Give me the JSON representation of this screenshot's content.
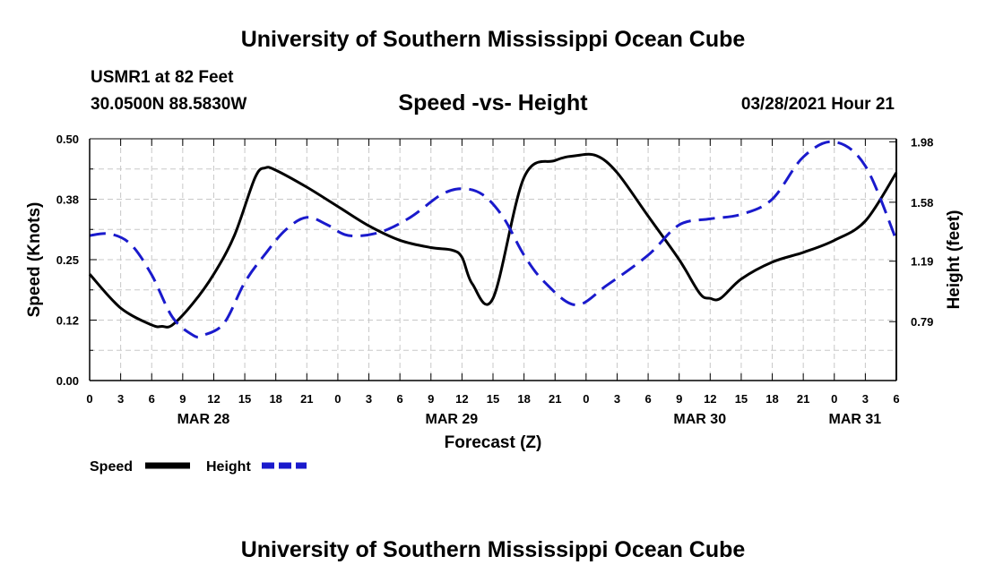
{
  "header": {
    "title_top": "University of Southern Mississippi Ocean Cube",
    "station": "USMR1 at 82 Feet",
    "coords": "30.0500N  88.5830W",
    "chart_title": "Speed -vs- Height",
    "datetime": "03/28/2021 Hour 21"
  },
  "footer": {
    "title_bottom": "University of Southern Mississippi Ocean Cube"
  },
  "colors": {
    "speed": "#000000",
    "height": "#1a1acc",
    "grid": "#c8c8c8"
  },
  "chart_data": {
    "type": "line",
    "title": "Speed -vs- Height",
    "xlabel": "Forecast (Z)",
    "ylabel_left": "Speed (Knots)",
    "ylabel_right": "Height (feet)",
    "x_range_hours": [
      0,
      78
    ],
    "x_ticks": [
      {
        "h": 0,
        "label": "0"
      },
      {
        "h": 3,
        "label": "3"
      },
      {
        "h": 6,
        "label": "6"
      },
      {
        "h": 9,
        "label": "9"
      },
      {
        "h": 12,
        "label": "12"
      },
      {
        "h": 15,
        "label": "15"
      },
      {
        "h": 18,
        "label": "18"
      },
      {
        "h": 21,
        "label": "21"
      },
      {
        "h": 24,
        "label": "0"
      },
      {
        "h": 27,
        "label": "3"
      },
      {
        "h": 30,
        "label": "6"
      },
      {
        "h": 33,
        "label": "9"
      },
      {
        "h": 36,
        "label": "12"
      },
      {
        "h": 39,
        "label": "15"
      },
      {
        "h": 42,
        "label": "18"
      },
      {
        "h": 45,
        "label": "21"
      },
      {
        "h": 48,
        "label": "0"
      },
      {
        "h": 51,
        "label": "3"
      },
      {
        "h": 54,
        "label": "6"
      },
      {
        "h": 57,
        "label": "9"
      },
      {
        "h": 60,
        "label": "12"
      },
      {
        "h": 63,
        "label": "15"
      },
      {
        "h": 66,
        "label": "18"
      },
      {
        "h": 69,
        "label": "21"
      },
      {
        "h": 72,
        "label": "0"
      },
      {
        "h": 75,
        "label": "3"
      },
      {
        "h": 78,
        "label": "6"
      }
    ],
    "date_labels": [
      {
        "h": 11,
        "label": "MAR 28"
      },
      {
        "h": 35,
        "label": "MAR 29"
      },
      {
        "h": 59,
        "label": "MAR 30"
      },
      {
        "h": 74,
        "label": "MAR 31"
      }
    ],
    "y_left_range": [
      0,
      0.5
    ],
    "y_left_ticks": [
      {
        "v": 0.0,
        "label": "0.00"
      },
      {
        "v": 0.125,
        "label": "0.12"
      },
      {
        "v": 0.25,
        "label": "0.25"
      },
      {
        "v": 0.375,
        "label": "0.38"
      },
      {
        "v": 0.5,
        "label": "0.50"
      }
    ],
    "y_right_range": [
      0.4,
      2.0
    ],
    "y_right_ticks": [
      {
        "v": 0.79,
        "label": "0.79"
      },
      {
        "v": 1.19,
        "label": "1.19"
      },
      {
        "v": 1.58,
        "label": "1.58"
      },
      {
        "v": 1.98,
        "label": "1.98"
      }
    ],
    "series": [
      {
        "name": "Speed",
        "axis": "left",
        "x": [
          0,
          3,
          6,
          7,
          8,
          10,
          12,
          14,
          16,
          17,
          18,
          21,
          24,
          27,
          30,
          33,
          35,
          36,
          37,
          39,
          42,
          45,
          47,
          49,
          51,
          54,
          57,
          59,
          60,
          61,
          63,
          66,
          69,
          72,
          75,
          78
        ],
        "y": [
          0.22,
          0.15,
          0.115,
          0.112,
          0.115,
          0.16,
          0.22,
          0.3,
          0.42,
          0.44,
          0.435,
          0.4,
          0.36,
          0.32,
          0.29,
          0.275,
          0.27,
          0.255,
          0.2,
          0.17,
          0.42,
          0.455,
          0.465,
          0.465,
          0.43,
          0.34,
          0.25,
          0.18,
          0.17,
          0.17,
          0.21,
          0.245,
          0.265,
          0.29,
          0.33,
          0.43
        ]
      },
      {
        "name": "Height",
        "axis": "right",
        "x": [
          0,
          2,
          4,
          6,
          8,
          10,
          11,
          13,
          15,
          17,
          19,
          21,
          23,
          25,
          28,
          31,
          34,
          36,
          38,
          40,
          42,
          44,
          47,
          50,
          54,
          57,
          60,
          63,
          66,
          69,
          72,
          75,
          78
        ],
        "y": [
          1.36,
          1.37,
          1.3,
          1.1,
          0.82,
          0.7,
          0.7,
          0.78,
          1.05,
          1.24,
          1.4,
          1.48,
          1.43,
          1.36,
          1.38,
          1.48,
          1.63,
          1.67,
          1.63,
          1.48,
          1.23,
          1.05,
          0.9,
          1.03,
          1.23,
          1.43,
          1.47,
          1.5,
          1.6,
          1.88,
          1.98,
          1.82,
          1.33
        ]
      }
    ],
    "legend": [
      {
        "name": "Speed",
        "style": "solid"
      },
      {
        "name": "Height",
        "style": "dashed"
      }
    ]
  }
}
